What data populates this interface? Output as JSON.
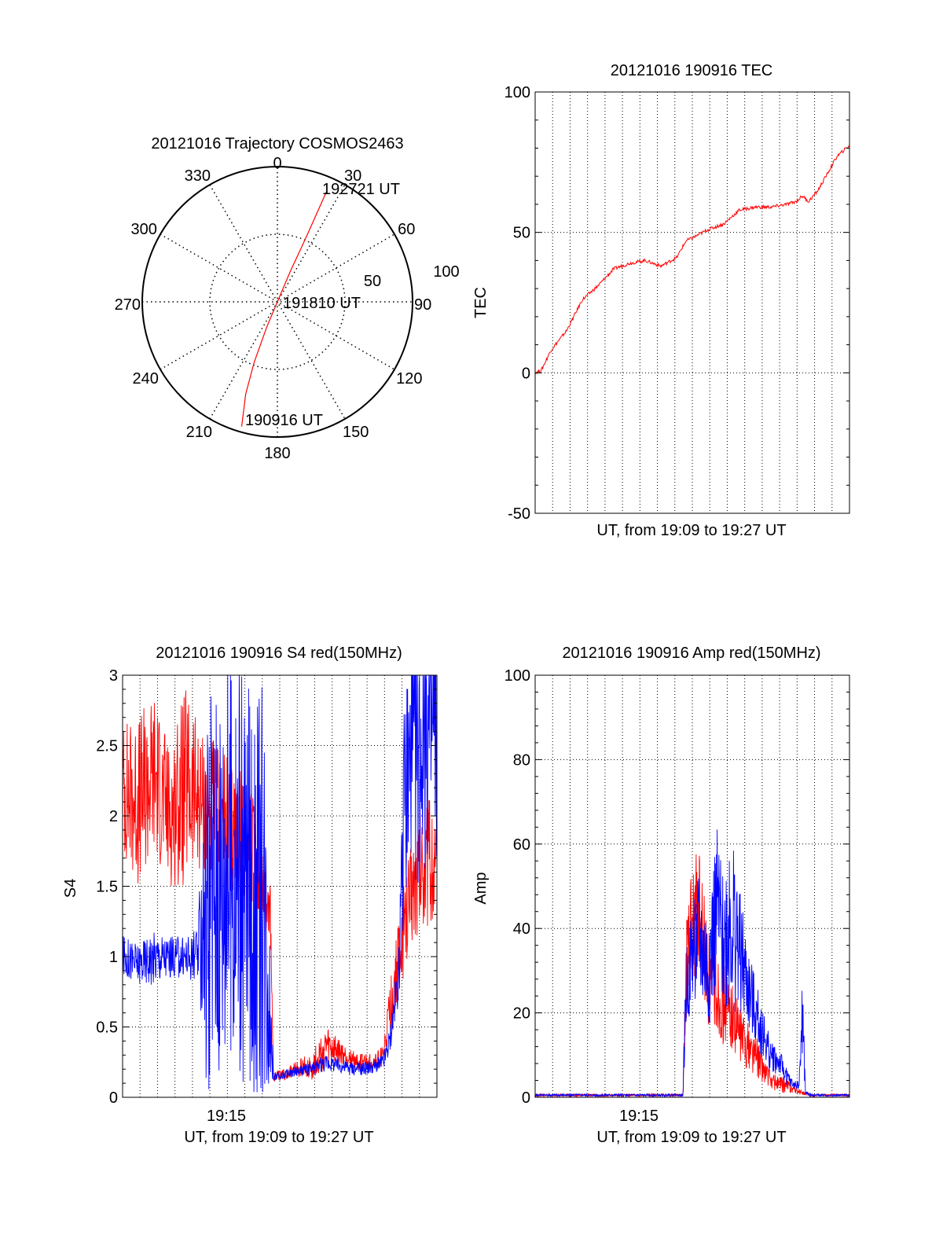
{
  "chart_data": [
    {
      "type": "polar",
      "title": "20121016 Trajectory COSMOS2463",
      "angle_labels": [
        "0",
        "30",
        "60",
        "90",
        "120",
        "150",
        "180",
        "210",
        "240",
        "270",
        "300",
        "330"
      ],
      "radius_labels": [
        "50",
        "100"
      ],
      "rlim": [
        0,
        100
      ],
      "grid": true,
      "trajectory": {
        "start_label": "190916 UT",
        "mid_label": "191810 UT",
        "end_label": "192721 UT",
        "color": "#ff0000",
        "points": [
          {
            "az": 196,
            "zen": 96
          },
          {
            "az": 199,
            "zen": 72
          },
          {
            "az": 201,
            "zen": 48
          },
          {
            "az": 203,
            "zen": 20
          },
          {
            "az": 0,
            "zen": 0
          },
          {
            "az": 23,
            "zen": 24
          },
          {
            "az": 24,
            "zen": 52
          },
          {
            "az": 24,
            "zen": 76
          },
          {
            "az": 24,
            "zen": 90
          }
        ]
      }
    },
    {
      "type": "line",
      "title": "20121016 190916 TEC",
      "xlabel": "UT, from 19:09 to 19:27 UT",
      "ylabel": "TEC",
      "xlim": [
        0,
        1
      ],
      "ylim": [
        -50,
        100
      ],
      "yticks": [
        "100",
        "50",
        "0",
        "-50"
      ],
      "grid": true,
      "series": [
        {
          "color": "#ff0000",
          "x": [
            0,
            0.02,
            0.05,
            0.1,
            0.15,
            0.2,
            0.25,
            0.3,
            0.35,
            0.4,
            0.45,
            0.48,
            0.5,
            0.55,
            0.6,
            0.65,
            0.7,
            0.75,
            0.8,
            0.83,
            0.85,
            0.87,
            0.9,
            0.93,
            0.96,
            1.0
          ],
          "y": [
            0,
            1,
            8,
            15,
            26,
            31,
            37,
            39,
            40,
            38,
            41,
            47,
            48,
            51,
            53,
            58,
            59,
            59,
            60,
            61,
            63,
            61,
            65,
            71,
            77,
            81
          ]
        }
      ]
    },
    {
      "type": "line",
      "title": "20121016 190916 S4 red(150MHz)",
      "xlabel": "UT, from 19:09 to 19:27 UT",
      "ylabel": "S4",
      "xlim": [
        0,
        1
      ],
      "ylim": [
        0,
        3
      ],
      "yticks": [
        "3",
        "2.5",
        "2",
        "1.5",
        "1",
        "0.5",
        "0"
      ],
      "xticks": [
        {
          "x": 0.33,
          "label": "19:15"
        }
      ],
      "grid": true,
      "series": [
        {
          "color": "#ff0000",
          "x": [
            0,
            0.05,
            0.1,
            0.15,
            0.2,
            0.25,
            0.3,
            0.35,
            0.4,
            0.45,
            0.47,
            0.48,
            0.5,
            0.55,
            0.6,
            0.65,
            0.7,
            0.75,
            0.8,
            0.83,
            0.85,
            0.88,
            0.92,
            0.96,
            1.0
          ],
          "y": [
            2.2,
            2.1,
            2.3,
            2.0,
            2.2,
            2.1,
            2.0,
            1.9,
            1.8,
            1.5,
            1.3,
            0.15,
            0.15,
            0.2,
            0.22,
            0.35,
            0.3,
            0.25,
            0.25,
            0.3,
            0.6,
            1.0,
            1.5,
            1.7,
            1.6
          ],
          "noise": [
            0.5,
            0.6,
            0.6,
            0.5,
            0.7,
            0.5,
            0.5,
            0.5,
            0.5,
            0.3,
            0.2,
            0.04,
            0.04,
            0.05,
            0.1,
            0.15,
            0.08,
            0.06,
            0.06,
            0.08,
            0.2,
            0.3,
            0.4,
            0.5,
            0.4
          ]
        },
        {
          "color": "#0000ff",
          "x": [
            0,
            0.05,
            0.1,
            0.15,
            0.2,
            0.24,
            0.27,
            0.3,
            0.35,
            0.4,
            0.45,
            0.48,
            0.5,
            0.55,
            0.6,
            0.65,
            0.7,
            0.75,
            0.8,
            0.83,
            0.85,
            0.88,
            0.9,
            0.95,
            1.0
          ],
          "y": [
            1.0,
            0.95,
            1.0,
            1.0,
            1.0,
            1.0,
            1.5,
            1.6,
            1.6,
            1.5,
            1.5,
            0.15,
            0.15,
            0.18,
            0.2,
            0.25,
            0.22,
            0.2,
            0.22,
            0.25,
            0.4,
            0.9,
            2.2,
            2.6,
            2.6
          ],
          "noise": [
            0.15,
            0.15,
            0.2,
            0.15,
            0.15,
            0.2,
            1.5,
            1.5,
            1.5,
            1.5,
            1.5,
            0.03,
            0.03,
            0.04,
            0.05,
            0.06,
            0.05,
            0.05,
            0.05,
            0.06,
            0.1,
            0.2,
            1.0,
            1.0,
            1.0
          ]
        }
      ]
    },
    {
      "type": "line",
      "title": "20121016 190916 Amp red(150MHz)",
      "xlabel": "UT, from 19:09 to 19:27 UT",
      "ylabel": "Amp",
      "xlim": [
        0,
        1
      ],
      "ylim": [
        0,
        100
      ],
      "yticks": [
        "100",
        "80",
        "60",
        "40",
        "20",
        "0"
      ],
      "xticks": [
        {
          "x": 0.33,
          "label": "19:15"
        }
      ],
      "grid": true,
      "series": [
        {
          "color": "#ff0000",
          "x": [
            0,
            0.2,
            0.45,
            0.47,
            0.48,
            0.5,
            0.52,
            0.55,
            0.58,
            0.6,
            0.62,
            0.65,
            0.7,
            0.75,
            0.78,
            0.8,
            0.82,
            0.85,
            0.88,
            0.9,
            1.0
          ],
          "y": [
            0.5,
            0.5,
            0.5,
            0.5,
            30,
            40,
            45,
            28,
            25,
            22,
            20,
            15,
            10,
            4,
            3,
            3,
            2,
            1,
            0.5,
            0.5,
            0.5
          ],
          "noise": [
            0.3,
            0.3,
            0.3,
            0.3,
            12,
            15,
            15,
            12,
            10,
            10,
            8,
            7,
            5,
            2,
            2,
            2,
            1,
            0.5,
            0.3,
            0.3,
            0.3
          ]
        },
        {
          "color": "#0000ff",
          "x": [
            0,
            0.2,
            0.45,
            0.47,
            0.48,
            0.5,
            0.52,
            0.55,
            0.58,
            0.6,
            0.62,
            0.65,
            0.68,
            0.7,
            0.75,
            0.78,
            0.8,
            0.82,
            0.84,
            0.85,
            0.86,
            0.88,
            1.0
          ],
          "y": [
            0.5,
            0.5,
            0.5,
            0.5,
            25,
            35,
            38,
            30,
            45,
            35,
            45,
            35,
            25,
            20,
            10,
            8,
            5,
            3,
            3,
            20,
            1,
            0.5,
            0.5
          ],
          "noise": [
            0.3,
            0.3,
            0.3,
            0.3,
            10,
            12,
            15,
            15,
            20,
            15,
            25,
            15,
            10,
            8,
            4,
            3,
            2,
            1,
            1,
            12,
            0.5,
            0.3,
            0.3
          ]
        }
      ]
    }
  ]
}
